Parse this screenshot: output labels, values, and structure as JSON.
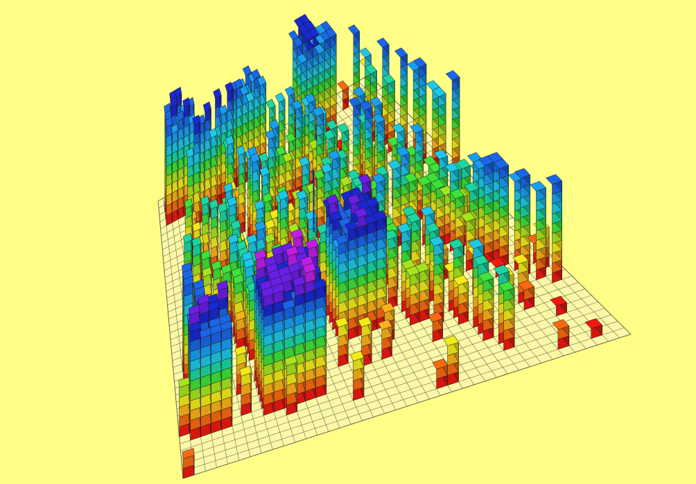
{
  "scene": {
    "background": "#ffff88",
    "grid_line_color": "#6b6b4a",
    "floor_color": "#fbf8a8",
    "voxel_edge_color": "#1a1a1a",
    "axis_color": "#1a2aa0",
    "height_colormap": [
      "#ee1a10",
      "#f76a10",
      "#fbb21a",
      "#f2ea1a",
      "#a8e41e",
      "#3ee23a",
      "#1cd6a2",
      "#1ec8e6",
      "#1a9ef0",
      "#1a66e6",
      "#1a28d0",
      "#6a1ee6",
      "#c01ee6",
      "#f01af0"
    ],
    "grid_cells": 40
  }
}
